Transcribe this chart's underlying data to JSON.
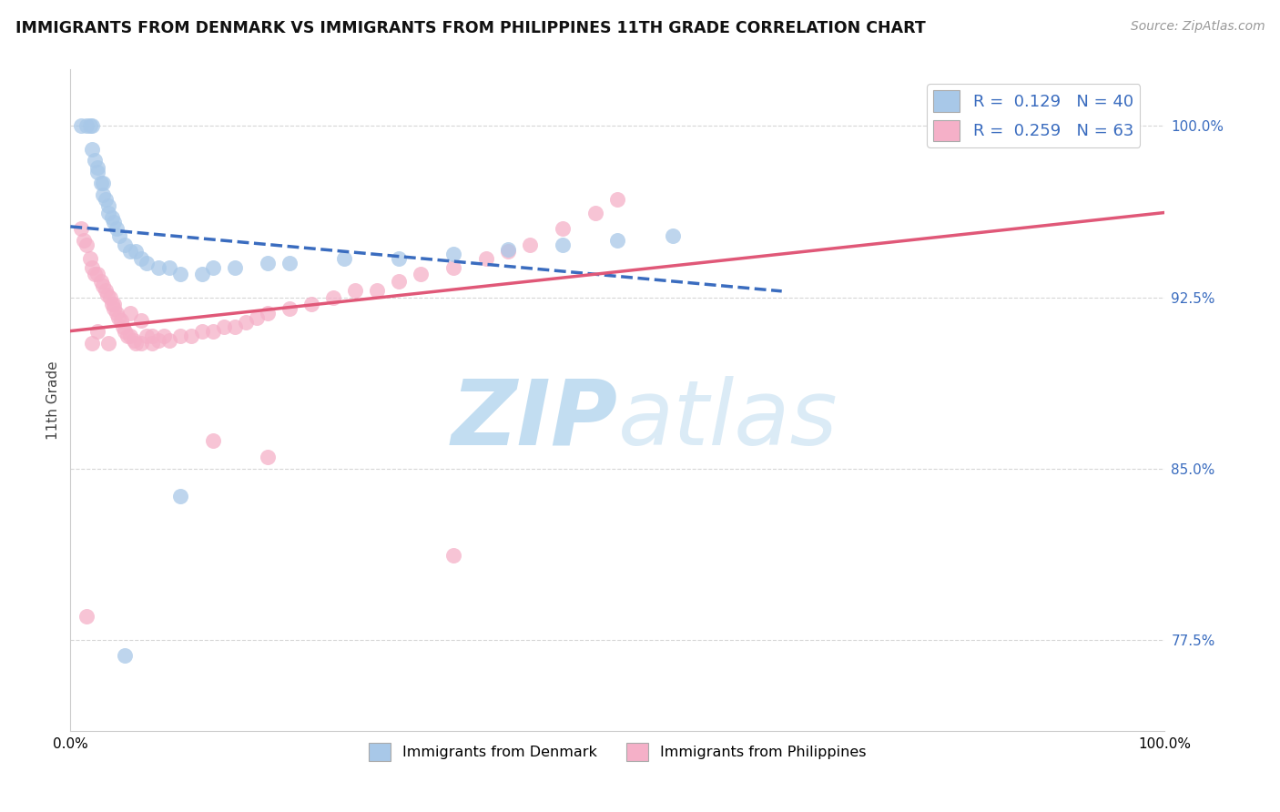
{
  "title": "IMMIGRANTS FROM DENMARK VS IMMIGRANTS FROM PHILIPPINES 11TH GRADE CORRELATION CHART",
  "source": "Source: ZipAtlas.com",
  "ylabel": "11th Grade",
  "xlim": [
    0.0,
    1.0
  ],
  "ylim": [
    0.735,
    1.025
  ],
  "y_ticks": [
    0.775,
    0.85,
    0.925,
    1.0
  ],
  "y_tick_labels": [
    "77.5%",
    "85.0%",
    "92.5%",
    "100.0%"
  ],
  "denmark_R": 0.129,
  "denmark_N": 40,
  "philippines_R": 0.259,
  "philippines_N": 63,
  "denmark_color": "#a8c8e8",
  "philippines_color": "#f5b0c8",
  "denmark_line_color": "#3a6cbf",
  "philippines_line_color": "#e05878",
  "denmark_x": [
    0.01,
    0.015,
    0.018,
    0.02,
    0.02,
    0.022,
    0.025,
    0.025,
    0.028,
    0.03,
    0.03,
    0.032,
    0.035,
    0.035,
    0.038,
    0.04,
    0.042,
    0.045,
    0.05,
    0.055,
    0.06,
    0.065,
    0.07,
    0.08,
    0.09,
    0.1,
    0.12,
    0.13,
    0.15,
    0.18,
    0.2,
    0.25,
    0.3,
    0.35,
    0.4,
    0.45,
    0.5,
    0.55,
    0.1,
    0.05
  ],
  "denmark_y": [
    1.0,
    1.0,
    1.0,
    1.0,
    0.99,
    0.985,
    0.982,
    0.98,
    0.975,
    0.975,
    0.97,
    0.968,
    0.965,
    0.962,
    0.96,
    0.958,
    0.955,
    0.952,
    0.948,
    0.945,
    0.945,
    0.942,
    0.94,
    0.938,
    0.938,
    0.935,
    0.935,
    0.938,
    0.938,
    0.94,
    0.94,
    0.942,
    0.942,
    0.944,
    0.946,
    0.948,
    0.95,
    0.952,
    0.838,
    0.768
  ],
  "philippines_x": [
    0.01,
    0.012,
    0.015,
    0.018,
    0.02,
    0.022,
    0.025,
    0.028,
    0.03,
    0.032,
    0.034,
    0.036,
    0.038,
    0.04,
    0.042,
    0.044,
    0.046,
    0.048,
    0.05,
    0.052,
    0.055,
    0.058,
    0.06,
    0.065,
    0.07,
    0.075,
    0.08,
    0.085,
    0.09,
    0.1,
    0.11,
    0.12,
    0.13,
    0.14,
    0.15,
    0.16,
    0.17,
    0.18,
    0.2,
    0.22,
    0.24,
    0.26,
    0.28,
    0.3,
    0.32,
    0.35,
    0.38,
    0.4,
    0.42,
    0.45,
    0.48,
    0.5,
    0.13,
    0.18,
    0.35,
    0.04,
    0.055,
    0.065,
    0.075,
    0.035,
    0.025,
    0.02,
    0.015
  ],
  "philippines_y": [
    0.955,
    0.95,
    0.948,
    0.942,
    0.938,
    0.935,
    0.935,
    0.932,
    0.93,
    0.928,
    0.926,
    0.925,
    0.922,
    0.92,
    0.918,
    0.916,
    0.915,
    0.912,
    0.91,
    0.908,
    0.908,
    0.906,
    0.905,
    0.905,
    0.908,
    0.908,
    0.906,
    0.908,
    0.906,
    0.908,
    0.908,
    0.91,
    0.91,
    0.912,
    0.912,
    0.914,
    0.916,
    0.918,
    0.92,
    0.922,
    0.925,
    0.928,
    0.928,
    0.932,
    0.935,
    0.938,
    0.942,
    0.945,
    0.948,
    0.955,
    0.962,
    0.968,
    0.862,
    0.855,
    0.812,
    0.922,
    0.918,
    0.915,
    0.905,
    0.905,
    0.91,
    0.905,
    0.785
  ],
  "watermark_zip": "ZIP",
  "watermark_atlas": "atlas",
  "grid_color": "#cccccc",
  "grid_linestyle": "--",
  "bottom_legend_labels": [
    "Immigrants from Denmark",
    "Immigrants from Philippines"
  ]
}
